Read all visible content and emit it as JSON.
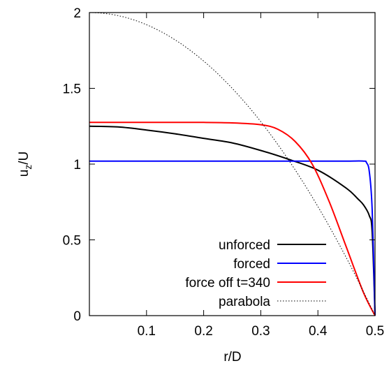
{
  "chart_data": {
    "type": "line",
    "xlabel": "r/D",
    "ylabel": "u_z/U",
    "xlim": [
      0,
      0.5
    ],
    "ylim": [
      0,
      2
    ],
    "x_ticks": [
      0.1,
      0.2,
      0.3,
      0.4,
      0.5
    ],
    "y_ticks": [
      0,
      0.5,
      1,
      1.5,
      2
    ],
    "x_tick_labels": [
      "0.1",
      "0.2",
      "0.3",
      "0.4",
      "0.5"
    ],
    "y_tick_labels": [
      "0",
      "0.5",
      "1",
      "1.5",
      "2"
    ],
    "grid": false,
    "legend_position": "bottom-right",
    "series": [
      {
        "name": "unforced",
        "color": "#000000",
        "style": "solid",
        "x": [
          0,
          0.05,
          0.1,
          0.15,
          0.2,
          0.25,
          0.3,
          0.35,
          0.4,
          0.45,
          0.47,
          0.48,
          0.49,
          0.495,
          0.5
        ],
        "y": [
          1.25,
          1.245,
          1.225,
          1.2,
          1.17,
          1.14,
          1.09,
          1.03,
          0.96,
          0.84,
          0.77,
          0.73,
          0.66,
          0.55,
          0
        ]
      },
      {
        "name": "forced",
        "color": "#0000ff",
        "style": "solid",
        "x": [
          0,
          0.1,
          0.2,
          0.3,
          0.4,
          0.45,
          0.48,
          0.485,
          0.49,
          0.495,
          0.5
        ],
        "y": [
          1.02,
          1.02,
          1.02,
          1.02,
          1.02,
          1.02,
          1.02,
          1.01,
          0.95,
          0.7,
          0
        ]
      },
      {
        "name": "force off t=340",
        "color": "#ff0000",
        "style": "solid",
        "x": [
          0,
          0.1,
          0.2,
          0.25,
          0.3,
          0.33,
          0.36,
          0.39,
          0.42,
          0.45,
          0.48,
          0.5
        ],
        "y": [
          1.275,
          1.275,
          1.275,
          1.272,
          1.26,
          1.23,
          1.15,
          1.0,
          0.75,
          0.45,
          0.15,
          0
        ]
      },
      {
        "name": "parabola",
        "color": "#000000",
        "style": "dotted",
        "function": "2*(1-(2x)^2)",
        "x": [
          0,
          0.05,
          0.1,
          0.15,
          0.2,
          0.25,
          0.3,
          0.35,
          0.4,
          0.45,
          0.5
        ],
        "y": [
          2,
          1.98,
          1.92,
          1.82,
          1.68,
          1.5,
          1.28,
          1.02,
          0.72,
          0.38,
          0
        ]
      }
    ]
  }
}
